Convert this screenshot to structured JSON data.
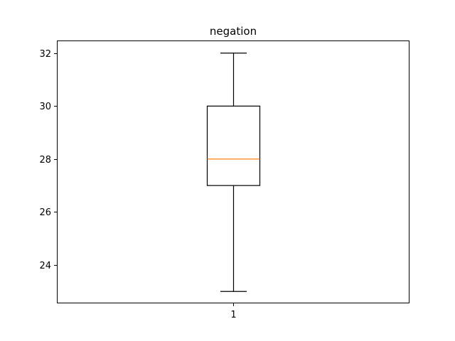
{
  "chart_data": {
    "type": "box",
    "title": "negation",
    "xlabel": "",
    "ylabel": "",
    "categories": [
      "1"
    ],
    "boxes": [
      {
        "category": "1",
        "whisker_low": 23,
        "q1": 27,
        "median": 28,
        "q3": 30,
        "whisker_high": 32
      }
    ],
    "ylim": [
      22.55,
      32.45
    ],
    "yticks": [
      24,
      26,
      28,
      30,
      32
    ],
    "ytick_labels": [
      "24",
      "26",
      "28",
      "30",
      "32"
    ],
    "grid": false,
    "legend": "none",
    "colors": {
      "box": "#000000",
      "median": "#ff7f0e",
      "axes": "#000000",
      "background": "#ffffff"
    }
  }
}
